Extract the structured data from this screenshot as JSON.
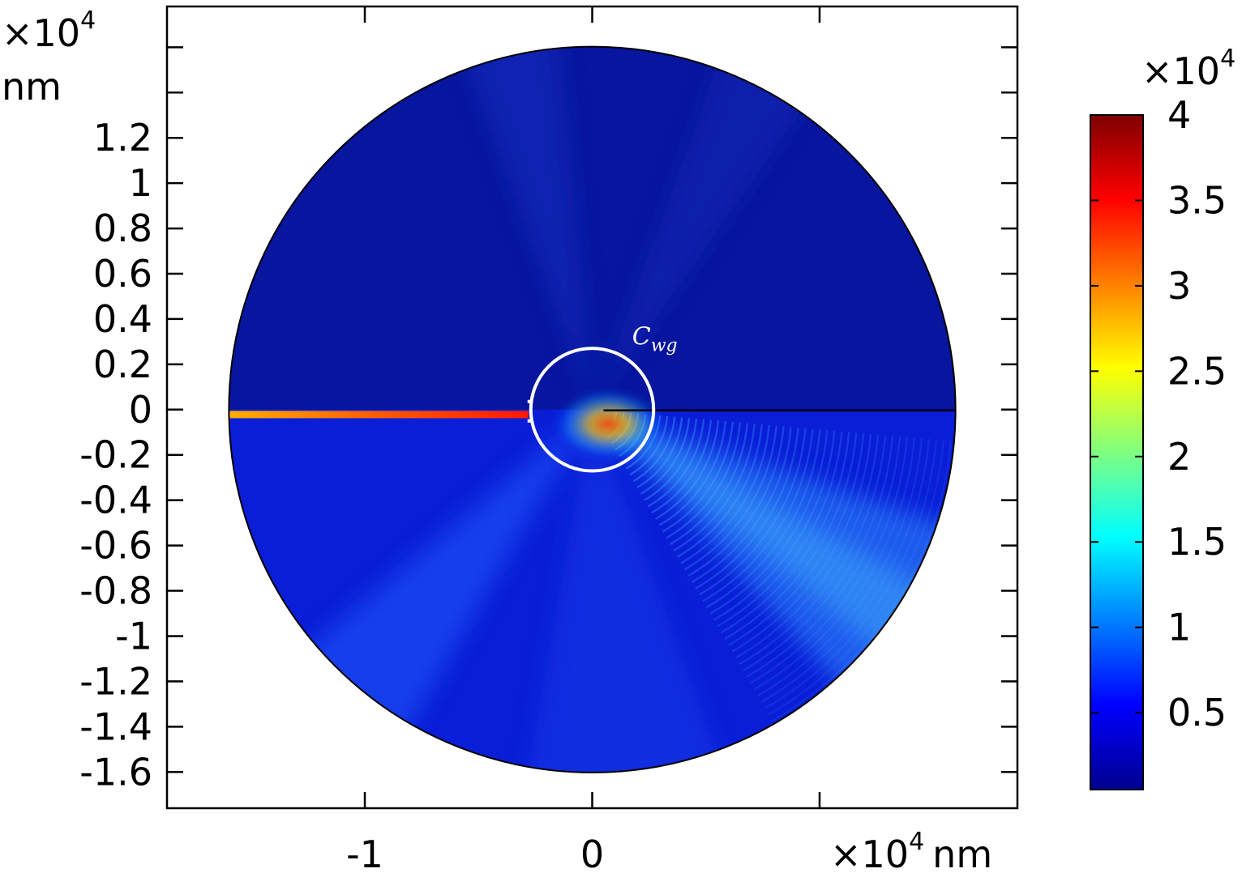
{
  "chart_data": {
    "type": "heatmap",
    "title": "",
    "xlabel": "",
    "ylabel": "",
    "x_unit_label": {
      "prefix": "×10",
      "exponent": "4",
      "unit": "nm"
    },
    "y_unit_label": {
      "prefix": "×10",
      "exponent": "4",
      "unit": "nm"
    },
    "x_tick_labels": [
      {
        "value": -1,
        "label": "-1"
      },
      {
        "value": 0,
        "label": "0"
      }
    ],
    "y_tick_labels": [
      {
        "value": 1.2,
        "label": "1.2"
      },
      {
        "value": 1.0,
        "label": "1"
      },
      {
        "value": 0.8,
        "label": "0.8"
      },
      {
        "value": 0.6,
        "label": "0.6"
      },
      {
        "value": 0.4,
        "label": "0.4"
      },
      {
        "value": 0.2,
        "label": "0.2"
      },
      {
        "value": 0.0,
        "label": "0"
      },
      {
        "value": -0.2,
        "label": "-0.2"
      },
      {
        "value": -0.4,
        "label": "-0.4"
      },
      {
        "value": -0.6,
        "label": "-0.6"
      },
      {
        "value": -0.8,
        "label": "-0.8"
      },
      {
        "value": -1.0,
        "label": "-1"
      },
      {
        "value": -1.2,
        "label": "-1.2"
      },
      {
        "value": -1.4,
        "label": "-1.4"
      },
      {
        "value": -1.6,
        "label": "-1.6"
      }
    ],
    "xlim": [
      -1.87,
      1.87
    ],
    "ylim": [
      -1.76,
      1.78
    ],
    "domain": {
      "shape": "disk",
      "center": [
        0,
        0
      ],
      "radius": 1.6
    },
    "waveguide": {
      "y": -0.02,
      "x_from": -1.6,
      "x_to": -0.28
    },
    "contour": {
      "label": "C_wg",
      "label_main": "C",
      "label_sub": "wg",
      "center": [
        0,
        0
      ],
      "radius": 0.27
    },
    "colorbar": {
      "multiplier": {
        "prefix": "×10",
        "exponent": "4"
      },
      "range": [
        0.05,
        4.0
      ],
      "colormap": "jet",
      "tick_labels": [
        {
          "value": 4,
          "label": "4"
        },
        {
          "value": 3.5,
          "label": "3.5"
        },
        {
          "value": 3,
          "label": "3"
        },
        {
          "value": 2.5,
          "label": "2.5"
        },
        {
          "value": 2,
          "label": "2"
        },
        {
          "value": 1.5,
          "label": "1.5"
        },
        {
          "value": 1,
          "label": "1"
        },
        {
          "value": 0.5,
          "label": "0.5"
        }
      ]
    },
    "colors": {
      "background_field": "#0a1ed8",
      "upper_field": "#08159e",
      "beam_glow": "#2e8cff",
      "contour": "#ffffff",
      "frame": "#000000"
    }
  }
}
